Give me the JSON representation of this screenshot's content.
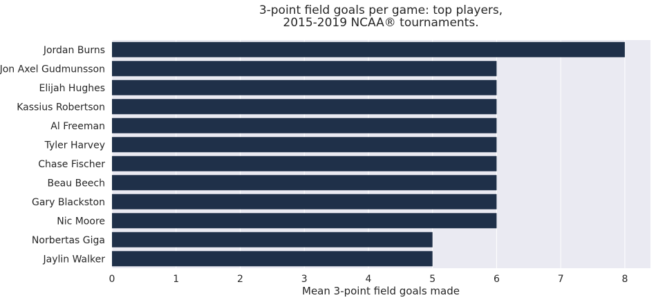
{
  "chart_data": {
    "type": "bar",
    "orientation": "horizontal",
    "title_lines": [
      "3-point field goals per game: top players,",
      "2015-2019 NCAA® tournaments."
    ],
    "xlabel": "Mean 3-point field goals made",
    "ylabel": "",
    "categories": [
      "Jordan Burns",
      "Jon Axel Gudmunsson",
      "Elijah Hughes",
      "Kassius Robertson",
      "Al Freeman",
      "Tyler Harvey",
      "Chase Fischer",
      "Beau Beech",
      "Gary Blackston",
      "Nic Moore",
      "Norbertas Giga",
      "Jaylin Walker"
    ],
    "values": [
      8,
      6,
      6,
      6,
      6,
      6,
      6,
      6,
      6,
      6,
      5,
      5
    ],
    "xlim": [
      0,
      8.4
    ],
    "xticks": [
      "0",
      "1",
      "2",
      "3",
      "4",
      "5",
      "6",
      "7",
      "8"
    ],
    "grid": true,
    "colors": {
      "bar": "#1f3049",
      "plot_background": "#eaeaf2",
      "grid": "#ffffff",
      "text": "#262626"
    }
  }
}
